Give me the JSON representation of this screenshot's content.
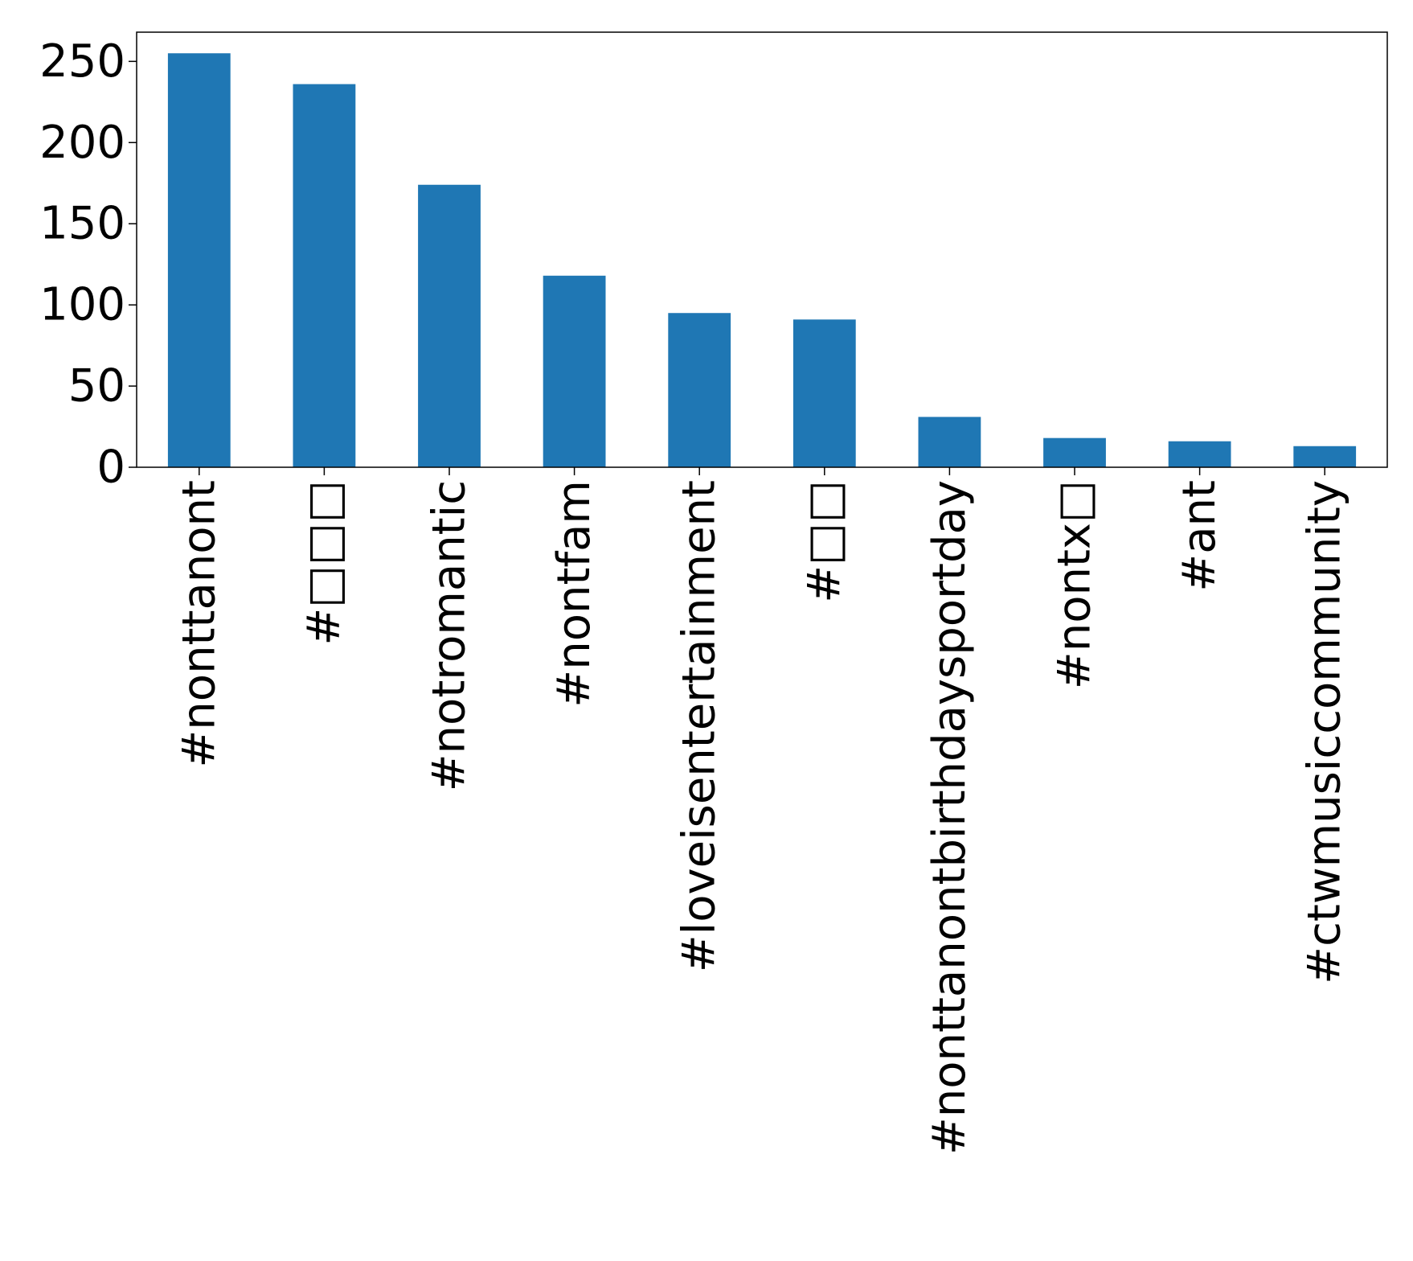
{
  "chart_data": {
    "type": "bar",
    "categories": [
      "#nonttanont",
      "#□□□",
      "#notromantic",
      "#nontfam",
      "#loveisentertainment",
      "#□□",
      "#nonttanontbirthdaysportday",
      "#nontx□",
      "#ant",
      "#ctwmusiccommunity"
    ],
    "values": [
      255,
      236,
      174,
      118,
      95,
      91,
      31,
      18,
      16,
      13
    ],
    "yticks": [
      0,
      50,
      100,
      150,
      200,
      250
    ],
    "ylim": [
      0,
      268
    ],
    "bar_color": "#1f77b4",
    "grid": false
  }
}
